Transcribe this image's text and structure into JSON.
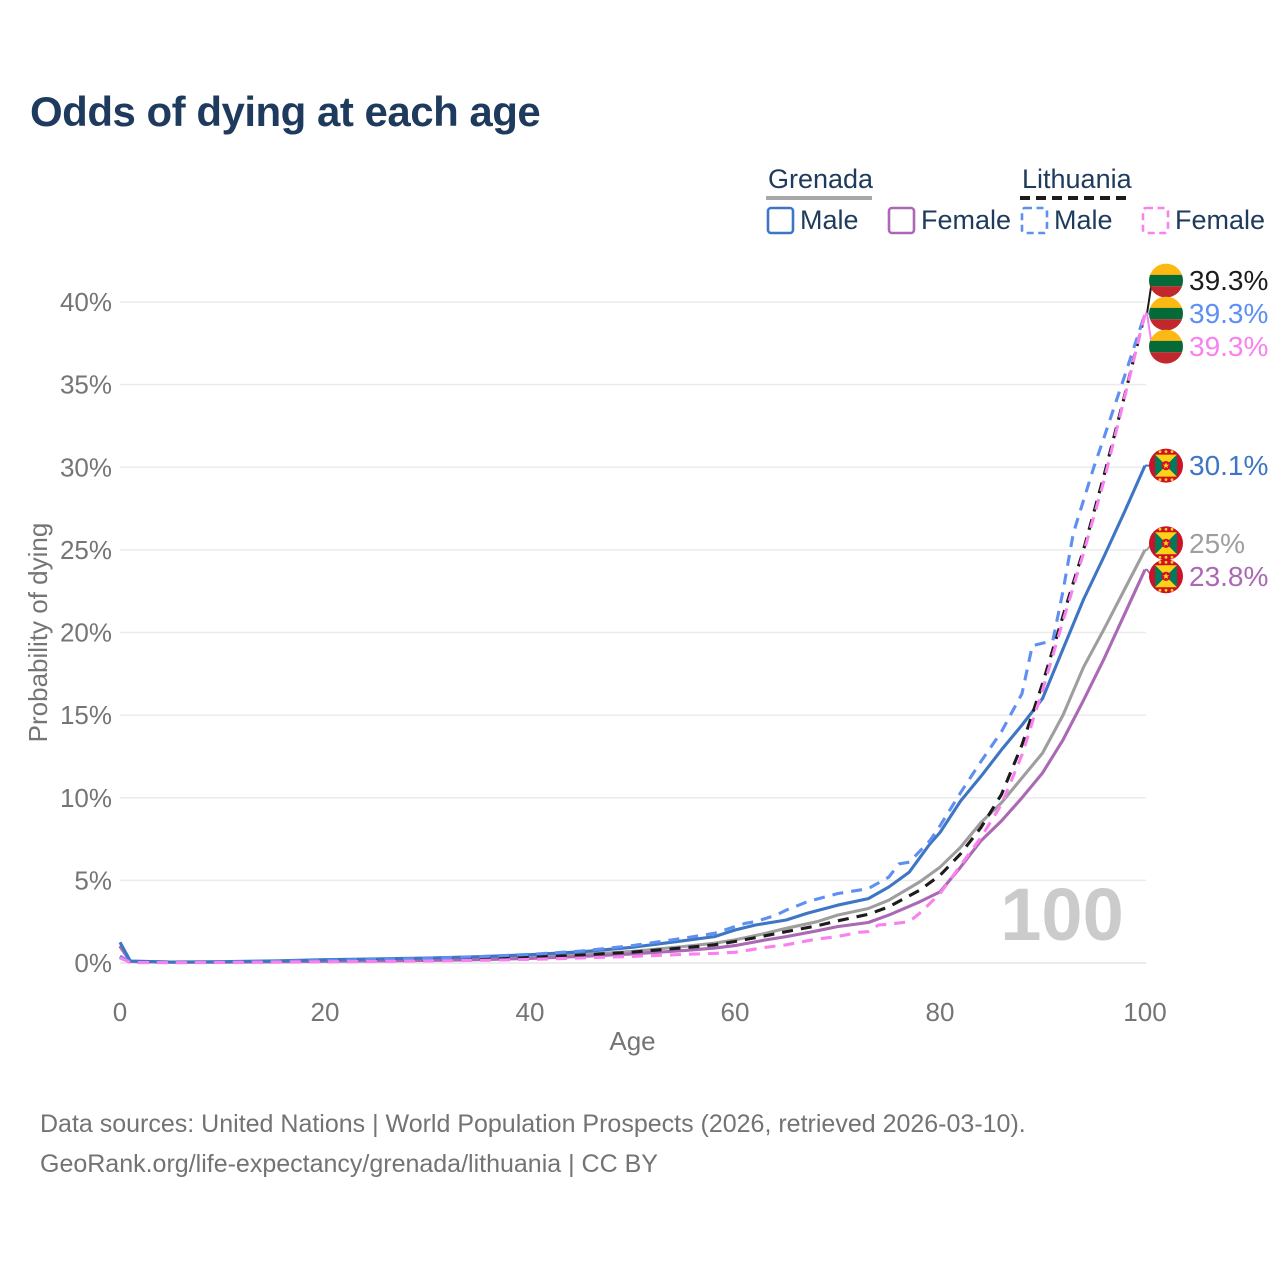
{
  "header": {
    "title": "Odds of dying at each age"
  },
  "legend": {
    "groups": [
      {
        "country": "Grenada",
        "line_style": "solid",
        "underline_color": "#a8a8a8",
        "items": [
          {
            "label": "Male",
            "color": "#3e76c4",
            "dashed": false
          },
          {
            "label": "Female",
            "color": "#ab68b5",
            "dashed": false
          }
        ]
      },
      {
        "country": "Lithuania",
        "line_style": "dashed",
        "underline_color": "#1c1c1c",
        "items": [
          {
            "label": "Male",
            "color": "#5e8ff2",
            "dashed": true
          },
          {
            "label": "Female",
            "color": "#f981ef",
            "dashed": true
          }
        ]
      }
    ]
  },
  "chart_data": {
    "type": "line",
    "title": "Odds of dying at each age",
    "xlabel": "Age",
    "ylabel": "Probability of dying",
    "xlim": [
      0,
      100
    ],
    "ylim": [
      0,
      40
    ],
    "x_ticks": [
      0,
      20,
      40,
      60,
      80,
      100
    ],
    "y_ticks": [
      "0%",
      "5%",
      "10%",
      "15%",
      "20%",
      "25%",
      "30%",
      "35%",
      "40%"
    ],
    "grid": "horizontal",
    "legend_position": "top-right",
    "watermark": "100",
    "axis_color": "#757575",
    "grid_color": "#ebebeb",
    "watermark_color": "#cbcbcb",
    "series": [
      {
        "name": "Grenada All",
        "country": "Grenada",
        "sex": "All",
        "color": "#9e9e9e",
        "dashed": false,
        "flag": "grenada",
        "end_label": "25%",
        "end_value": 25.0,
        "points": [
          [
            0,
            1.05
          ],
          [
            1,
            0.1
          ],
          [
            5,
            0.05
          ],
          [
            10,
            0.06
          ],
          [
            15,
            0.09
          ],
          [
            20,
            0.13
          ],
          [
            25,
            0.16
          ],
          [
            30,
            0.2
          ],
          [
            35,
            0.26
          ],
          [
            40,
            0.35
          ],
          [
            45,
            0.5
          ],
          [
            50,
            0.7
          ],
          [
            55,
            1.0
          ],
          [
            58,
            1.2
          ],
          [
            60,
            1.4
          ],
          [
            63,
            1.8
          ],
          [
            65,
            2.1
          ],
          [
            68,
            2.5
          ],
          [
            70,
            2.9
          ],
          [
            73,
            3.3
          ],
          [
            75,
            3.8
          ],
          [
            78,
            4.9
          ],
          [
            80,
            5.8
          ],
          [
            82,
            7.0
          ],
          [
            84,
            8.5
          ],
          [
            86,
            9.7
          ],
          [
            88,
            11.2
          ],
          [
            90,
            12.7
          ],
          [
            92,
            15.0
          ],
          [
            94,
            17.9
          ],
          [
            96,
            20.2
          ],
          [
            98,
            22.6
          ],
          [
            100,
            25.0
          ]
        ]
      },
      {
        "name": "Grenada Female",
        "country": "Grenada",
        "sex": "Female",
        "color": "#ab68b5",
        "dashed": false,
        "flag": "grenada",
        "end_label": "23.8%",
        "end_value": 23.8,
        "points": [
          [
            0,
            1.0
          ],
          [
            1,
            0.09
          ],
          [
            5,
            0.05
          ],
          [
            10,
            0.05
          ],
          [
            15,
            0.07
          ],
          [
            20,
            0.1
          ],
          [
            25,
            0.12
          ],
          [
            30,
            0.15
          ],
          [
            35,
            0.2
          ],
          [
            40,
            0.28
          ],
          [
            45,
            0.4
          ],
          [
            50,
            0.55
          ],
          [
            55,
            0.75
          ],
          [
            58,
            0.9
          ],
          [
            60,
            1.05
          ],
          [
            63,
            1.4
          ],
          [
            65,
            1.6
          ],
          [
            68,
            1.95
          ],
          [
            70,
            2.2
          ],
          [
            73,
            2.45
          ],
          [
            75,
            2.9
          ],
          [
            78,
            3.7
          ],
          [
            80,
            4.3
          ],
          [
            82,
            5.8
          ],
          [
            84,
            7.4
          ],
          [
            86,
            8.6
          ],
          [
            88,
            10.0
          ],
          [
            90,
            11.5
          ],
          [
            92,
            13.5
          ],
          [
            94,
            15.9
          ],
          [
            96,
            18.4
          ],
          [
            98,
            21.1
          ],
          [
            100,
            23.8
          ]
        ]
      },
      {
        "name": "Grenada Male",
        "country": "Grenada",
        "sex": "Male",
        "color": "#3e76c4",
        "dashed": false,
        "flag": "grenada",
        "end_label": "30.1%",
        "end_value": 30.1,
        "points": [
          [
            0,
            1.25
          ],
          [
            1,
            0.12
          ],
          [
            5,
            0.06
          ],
          [
            10,
            0.08
          ],
          [
            15,
            0.13
          ],
          [
            20,
            0.2
          ],
          [
            25,
            0.25
          ],
          [
            30,
            0.3
          ],
          [
            35,
            0.38
          ],
          [
            40,
            0.5
          ],
          [
            45,
            0.68
          ],
          [
            50,
            0.95
          ],
          [
            55,
            1.35
          ],
          [
            58,
            1.6
          ],
          [
            60,
            2.0
          ],
          [
            62,
            2.3
          ],
          [
            65,
            2.6
          ],
          [
            67,
            3.0
          ],
          [
            70,
            3.5
          ],
          [
            73,
            3.9
          ],
          [
            75,
            4.6
          ],
          [
            77,
            5.5
          ],
          [
            79,
            7.2
          ],
          [
            80,
            7.9
          ],
          [
            82,
            9.8
          ],
          [
            84,
            11.3
          ],
          [
            86,
            12.9
          ],
          [
            88,
            14.4
          ],
          [
            90,
            16.0
          ],
          [
            92,
            19.0
          ],
          [
            94,
            22.0
          ],
          [
            96,
            24.6
          ],
          [
            98,
            27.3
          ],
          [
            100,
            30.1
          ]
        ]
      },
      {
        "name": "Lithuania All",
        "country": "Lithuania",
        "sex": "All",
        "color": "#1c1c1c",
        "dashed": true,
        "flag": "lithuania",
        "end_label": "39.3%",
        "end_value": 39.3,
        "points": [
          [
            0,
            0.35
          ],
          [
            1,
            0.04
          ],
          [
            5,
            0.03
          ],
          [
            10,
            0.04
          ],
          [
            15,
            0.07
          ],
          [
            20,
            0.11
          ],
          [
            25,
            0.14
          ],
          [
            30,
            0.18
          ],
          [
            35,
            0.25
          ],
          [
            40,
            0.34
          ],
          [
            45,
            0.48
          ],
          [
            50,
            0.66
          ],
          [
            55,
            0.92
          ],
          [
            58,
            1.1
          ],
          [
            60,
            1.3
          ],
          [
            63,
            1.65
          ],
          [
            65,
            1.9
          ],
          [
            68,
            2.25
          ],
          [
            70,
            2.55
          ],
          [
            73,
            2.95
          ],
          [
            75,
            3.4
          ],
          [
            78,
            4.4
          ],
          [
            80,
            5.3
          ],
          [
            82,
            6.6
          ],
          [
            84,
            8.2
          ],
          [
            86,
            10.2
          ],
          [
            88,
            13.2
          ],
          [
            90,
            16.9
          ],
          [
            92,
            21.0
          ],
          [
            94,
            25.0
          ],
          [
            96,
            29.5
          ],
          [
            98,
            34.3
          ],
          [
            100,
            39.3
          ]
        ]
      },
      {
        "name": "Lithuania Male",
        "country": "Lithuania",
        "sex": "Male",
        "color": "#5e8ff2",
        "dashed": true,
        "flag": "lithuania",
        "end_label": "39.3%",
        "end_value": 39.3,
        "points": [
          [
            0,
            0.42
          ],
          [
            1,
            0.05
          ],
          [
            5,
            0.03
          ],
          [
            10,
            0.05
          ],
          [
            15,
            0.09
          ],
          [
            20,
            0.16
          ],
          [
            25,
            0.22
          ],
          [
            30,
            0.28
          ],
          [
            35,
            0.38
          ],
          [
            40,
            0.52
          ],
          [
            45,
            0.72
          ],
          [
            50,
            1.05
          ],
          [
            55,
            1.5
          ],
          [
            58,
            1.8
          ],
          [
            60,
            2.2
          ],
          [
            61,
            2.4
          ],
          [
            62,
            2.5
          ],
          [
            64,
            2.9
          ],
          [
            65,
            3.2
          ],
          [
            67,
            3.7
          ],
          [
            70,
            4.2
          ],
          [
            72,
            4.4
          ],
          [
            73,
            4.5
          ],
          [
            75,
            5.2
          ],
          [
            76,
            6.0
          ],
          [
            77,
            6.1
          ],
          [
            79,
            7.4
          ],
          [
            80,
            8.3
          ],
          [
            82,
            10.3
          ],
          [
            84,
            12.2
          ],
          [
            86,
            14.0
          ],
          [
            88,
            16.3
          ],
          [
            89,
            19.2
          ],
          [
            91,
            19.5
          ],
          [
            92,
            22.5
          ],
          [
            93,
            26.0
          ],
          [
            95,
            30.0
          ],
          [
            96,
            31.8
          ],
          [
            98,
            35.5
          ],
          [
            100,
            39.3
          ]
        ]
      },
      {
        "name": "Lithuania Female",
        "country": "Lithuania",
        "sex": "Female",
        "color": "#f981ef",
        "dashed": true,
        "flag": "lithuania",
        "end_label": "39.3%",
        "end_value": 39.3,
        "points": [
          [
            0,
            0.3
          ],
          [
            1,
            0.03
          ],
          [
            5,
            0.02
          ],
          [
            10,
            0.03
          ],
          [
            15,
            0.05
          ],
          [
            20,
            0.07
          ],
          [
            25,
            0.09
          ],
          [
            30,
            0.12
          ],
          [
            35,
            0.16
          ],
          [
            40,
            0.22
          ],
          [
            45,
            0.3
          ],
          [
            50,
            0.4
          ],
          [
            55,
            0.52
          ],
          [
            58,
            0.58
          ],
          [
            60,
            0.65
          ],
          [
            63,
            0.95
          ],
          [
            65,
            1.1
          ],
          [
            68,
            1.45
          ],
          [
            70,
            1.6
          ],
          [
            72,
            1.85
          ],
          [
            73,
            1.9
          ],
          [
            74,
            2.3
          ],
          [
            75,
            2.35
          ],
          [
            77,
            2.5
          ],
          [
            78,
            3.0
          ],
          [
            80,
            4.2
          ],
          [
            82,
            5.9
          ],
          [
            84,
            7.6
          ],
          [
            86,
            9.6
          ],
          [
            88,
            12.6
          ],
          [
            90,
            16.5
          ],
          [
            92,
            20.7
          ],
          [
            94,
            24.8
          ],
          [
            96,
            29.2
          ],
          [
            98,
            34.2
          ],
          [
            100,
            39.3
          ]
        ]
      }
    ],
    "flag_colors": {
      "lithuania": {
        "yellow": "#FDB913",
        "green": "#046A38",
        "red": "#C1272D"
      },
      "grenada": {
        "red": "#CE1126",
        "green": "#007A5E",
        "yellow": "#FCD116"
      }
    }
  },
  "footer": {
    "line1": "Data sources: United Nations | World Population Prospects (2026, retrieved 2026-03-10).",
    "line2": "GeoRank.org/life-expectancy/grenada/lithuania | CC BY"
  }
}
